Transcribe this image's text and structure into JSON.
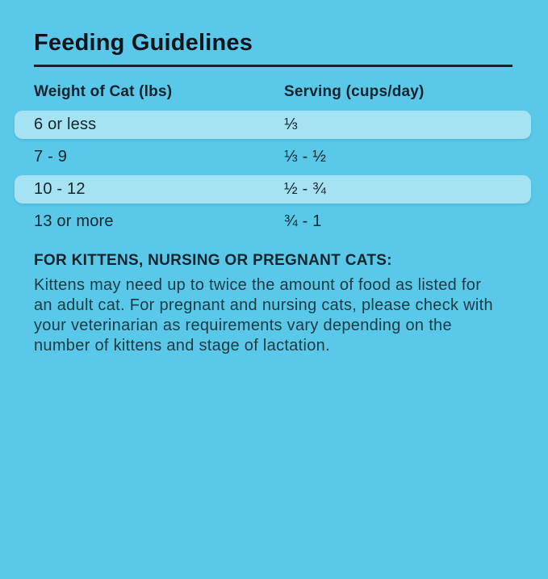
{
  "page": {
    "title": "Feeding Guidelines"
  },
  "table": {
    "headers": [
      "Weight of Cat (lbs)",
      "Serving (cups/day)"
    ],
    "rows": [
      {
        "weight": "6 or less",
        "serving": "⅓"
      },
      {
        "weight": "7 - 9",
        "serving": "⅓ - ½"
      },
      {
        "weight": "10 - 12",
        "serving": "½ - ¾"
      },
      {
        "weight": "13 or more",
        "serving": "¾ - 1"
      }
    ]
  },
  "note": {
    "heading": "FOR KITTENS, NURSING OR PREGNANT CATS:",
    "body": "Kittens may need up to twice the amount of food as listed for an adult cat. For pregnant and nursing cats, please check with your veterinarian as requirements vary depending on the number of kittens and stage of lactation."
  },
  "colors": {
    "background": "#5AC8E8",
    "row_highlight": "#A5E2F2",
    "rule": "#13242F",
    "text": "#16262F"
  }
}
